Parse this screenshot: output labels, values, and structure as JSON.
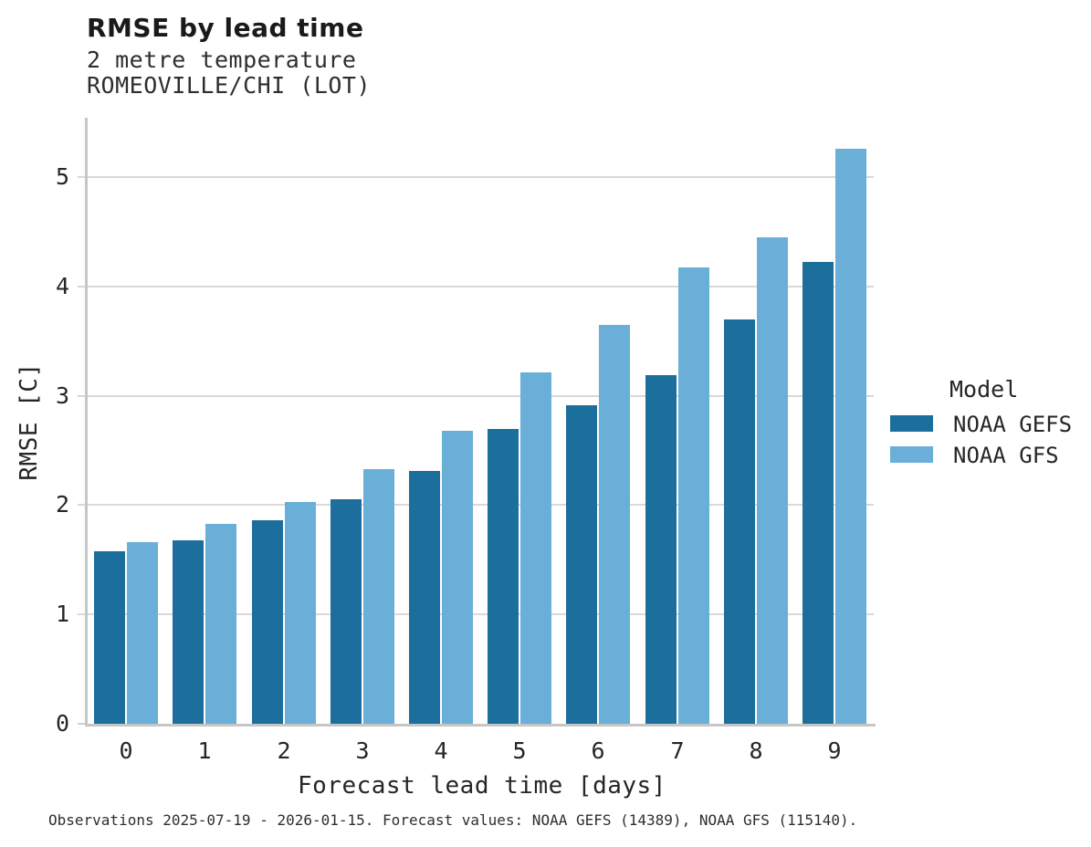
{
  "chart_data": {
    "type": "bar",
    "title": "RMSE by lead time",
    "subtitle": "2 metre temperature",
    "station": "ROMEOVILLE/CHI (LOT)",
    "xlabel": "Forecast lead time [days]",
    "ylabel": "RMSE [C]",
    "categories": [
      "0",
      "1",
      "2",
      "3",
      "4",
      "5",
      "6",
      "7",
      "8",
      "9"
    ],
    "series": [
      {
        "name": "NOAA GEFS",
        "color": "#1c6e9d",
        "values": [
          1.58,
          1.68,
          1.86,
          2.05,
          2.31,
          2.7,
          2.91,
          3.19,
          3.7,
          4.22
        ]
      },
      {
        "name": "NOAA GFS",
        "color": "#69afd7",
        "values": [
          1.66,
          1.83,
          2.03,
          2.33,
          2.68,
          3.21,
          3.65,
          4.17,
          4.45,
          5.26
        ]
      }
    ],
    "yticks": [
      0,
      1,
      2,
      3,
      4,
      5
    ],
    "ylim": [
      0,
      5.54
    ],
    "grid": true,
    "legend_title": "Model",
    "legend_position": "right"
  },
  "caption": "Observations 2025-07-19 - 2026-01-15. Forecast values: NOAA GEFS (14389), NOAA GFS (115140).",
  "colors": {
    "gefs": "#1c6e9d",
    "gfs": "#69afd7",
    "grid": "#d9d9d9",
    "spine": "#c6c6c6",
    "text": "#262626"
  }
}
